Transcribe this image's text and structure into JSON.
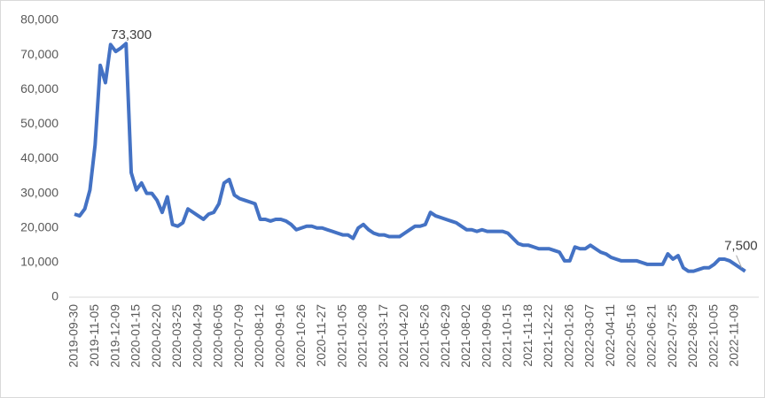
{
  "chart_data": {
    "type": "line",
    "categories": [
      "2019-09-30",
      null,
      null,
      null,
      "2019-11-05",
      null,
      null,
      null,
      "2019-12-09",
      null,
      null,
      null,
      "2020-01-15",
      null,
      null,
      null,
      "2020-02-20",
      null,
      null,
      null,
      "2020-03-25",
      null,
      null,
      null,
      "2020-04-29",
      null,
      null,
      null,
      "2020-06-05",
      null,
      null,
      null,
      "2020-07-09",
      null,
      null,
      null,
      "2020-08-12",
      null,
      null,
      null,
      "2020-09-16",
      null,
      null,
      null,
      "2020-10-26",
      null,
      null,
      null,
      "2020-11-27",
      null,
      null,
      null,
      "2021-01-05",
      null,
      null,
      null,
      "2021-02-08",
      null,
      null,
      null,
      "2021-03-17",
      null,
      null,
      null,
      "2021-04-20",
      null,
      null,
      null,
      "2021-05-26",
      null,
      null,
      null,
      "2021-06-29",
      null,
      null,
      null,
      "2021-08-02",
      null,
      null,
      null,
      "2021-09-06",
      null,
      null,
      null,
      "2021-10-15",
      null,
      null,
      null,
      "2021-11-18",
      null,
      null,
      null,
      "2021-12-22",
      null,
      null,
      null,
      "2022-01-26",
      null,
      null,
      null,
      "2022-03-07",
      null,
      null,
      null,
      "2022-04-11",
      null,
      null,
      null,
      "2022-05-16",
      null,
      null,
      null,
      "2022-06-21",
      null,
      null,
      null,
      "2022-07-25",
      null,
      null,
      null,
      "2022-08-29",
      null,
      null,
      null,
      "2022-10-05",
      null,
      null,
      null,
      "2022-11-09",
      null,
      null
    ],
    "values": [
      24000,
      23500,
      25500,
      31000,
      44000,
      67000,
      62000,
      73000,
      71000,
      72000,
      73300,
      36000,
      31000,
      33000,
      30000,
      30000,
      28000,
      24500,
      29000,
      21000,
      20500,
      21500,
      25500,
      24500,
      23500,
      22500,
      24000,
      24500,
      27000,
      33000,
      34000,
      29500,
      28500,
      28000,
      27500,
      27000,
      22500,
      22500,
      22000,
      22500,
      22500,
      22000,
      21000,
      19500,
      20000,
      20500,
      20500,
      20000,
      20000,
      19500,
      19000,
      18500,
      18000,
      18000,
      17000,
      20000,
      21000,
      19500,
      18500,
      18000,
      18000,
      17500,
      17500,
      17500,
      18500,
      19500,
      20500,
      20500,
      21000,
      24500,
      23500,
      23000,
      22500,
      22000,
      21500,
      20500,
      19500,
      19500,
      19000,
      19500,
      19000,
      19000,
      19000,
      19000,
      18500,
      17000,
      15500,
      15000,
      15000,
      14500,
      14000,
      14000,
      14000,
      13500,
      13000,
      10500,
      10500,
      14500,
      14000,
      14000,
      15000,
      14000,
      13000,
      12500,
      11500,
      11000,
      10500,
      10500,
      10500,
      10500,
      10000,
      9500,
      9500,
      9500,
      9500,
      12500,
      11000,
      12000,
      8500,
      7500,
      7500,
      8000,
      8500,
      8500,
      9500,
      11000,
      11000,
      10500,
      9500,
      8500,
      7500
    ],
    "value_labels": [
      null,
      null,
      null,
      null,
      null,
      null,
      null,
      null,
      null,
      null,
      "73,300",
      null,
      null,
      null,
      null,
      null,
      null,
      null,
      null,
      null,
      null,
      null,
      null,
      null,
      null,
      null,
      null,
      null,
      null,
      null,
      null,
      null,
      null,
      null,
      null,
      null,
      null,
      null,
      null,
      null,
      null,
      null,
      null,
      null,
      null,
      null,
      null,
      null,
      null,
      null,
      null,
      null,
      null,
      null,
      null,
      null,
      null,
      null,
      null,
      null,
      null,
      null,
      null,
      null,
      null,
      null,
      null,
      null,
      null,
      null,
      null,
      null,
      null,
      null,
      null,
      null,
      null,
      null,
      null,
      null,
      null,
      null,
      null,
      null,
      null,
      null,
      null,
      null,
      null,
      null,
      null,
      null,
      null,
      null,
      null,
      null,
      null,
      null,
      null,
      null,
      null,
      null,
      null,
      null,
      null,
      null,
      null,
      null,
      null,
      null,
      null,
      null,
      null,
      null,
      null,
      null,
      null,
      null,
      null,
      null,
      null,
      null,
      null,
      null,
      null,
      null,
      null,
      null,
      null,
      null,
      "7,500"
    ],
    "color": "#4472c4",
    "ylim": [
      0,
      80000
    ],
    "yticks": [
      0,
      {
        "value": 10000,
        "label": "10,000"
      },
      {
        "value": 20000,
        "label": "20,000"
      },
      {
        "value": 30000,
        "label": "30,000"
      },
      {
        "value": 40000,
        "label": "40,000"
      },
      {
        "value": 50000,
        "label": "50,000"
      },
      {
        "value": 60000,
        "label": "60,000"
      },
      {
        "value": 70000,
        "label": "70,000"
      },
      {
        "value": 80000,
        "label": "80,000"
      }
    ],
    "grid": false
  }
}
